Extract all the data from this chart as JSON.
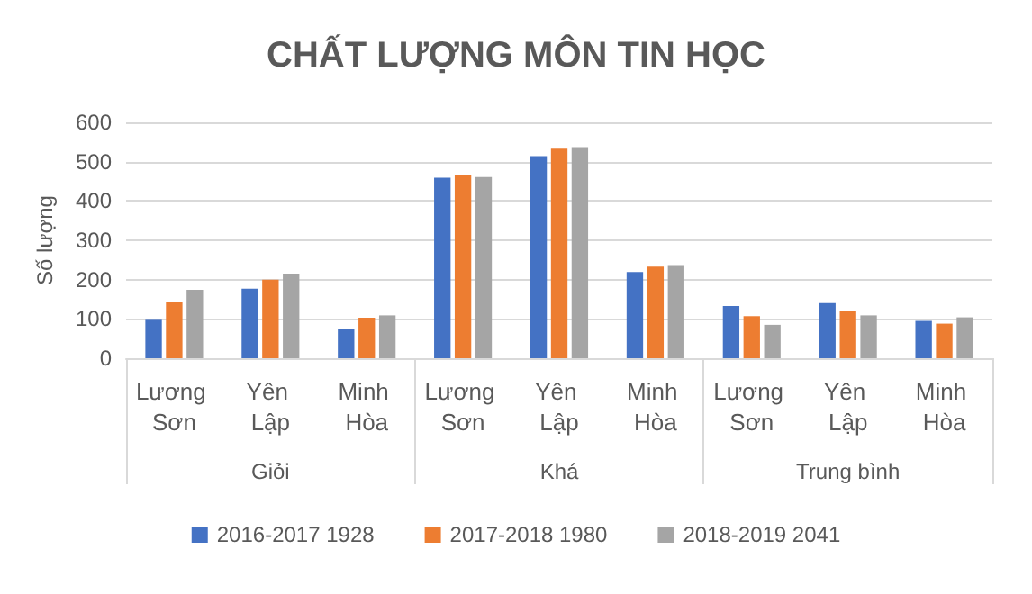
{
  "chart_data": {
    "type": "bar",
    "title": "CHẤT LƯỢNG MÔN TIN HỌC",
    "ylabel": "Số lượng",
    "categories": [
      "Lương Sơn",
      "Yên Lập",
      "Minh Hòa",
      "Lương Sơn",
      "Yên Lập",
      "Minh Hòa",
      "Lương Sơn",
      "Yên Lập",
      "Minh Hòa"
    ],
    "annotations": [
      "Giỏi",
      "Khá",
      "Trung bình"
    ],
    "series": [
      {
        "name": "2016-2017 1928",
        "color": "#4472c4",
        "values": [
          100,
          177,
          74,
          459,
          514,
          219,
          133,
          140,
          95
        ]
      },
      {
        "name": "2017-2018 1980",
        "color": "#ed7d31",
        "values": [
          143,
          200,
          103,
          466,
          533,
          233,
          107,
          120,
          88
        ]
      },
      {
        "name": "2018-2019 2041",
        "color": "#a5a5a5",
        "values": [
          174,
          215,
          109,
          461,
          537,
          237,
          85,
          109,
          104
        ]
      }
    ],
    "ylim": [
      0,
      600
    ],
    "yticks": [
      0,
      100,
      200,
      300,
      400,
      500,
      600
    ],
    "grid": "y",
    "legend": "bottom"
  }
}
